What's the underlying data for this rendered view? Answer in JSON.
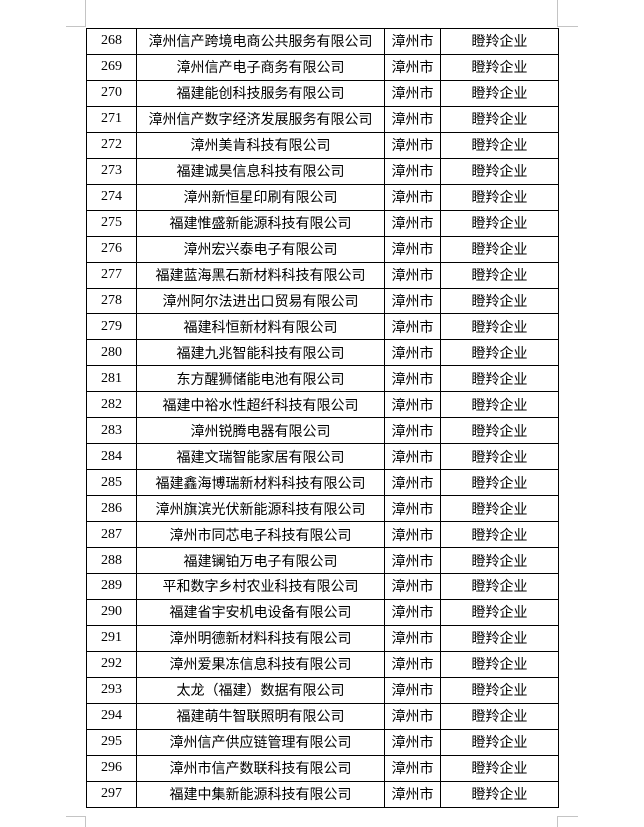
{
  "page": {
    "background_color": "#ffffff",
    "crop_mark_color": "#c4c4c4"
  },
  "table": {
    "border_color": "#000000",
    "text_color": "#000000",
    "rows": [
      {
        "no": "268",
        "company": "漳州信产跨境电商公共服务有限公司",
        "city": "漳州市",
        "category": "瞪羚企业"
      },
      {
        "no": "269",
        "company": "漳州信产电子商务有限公司",
        "city": "漳州市",
        "category": "瞪羚企业"
      },
      {
        "no": "270",
        "company": "福建能创科技服务有限公司",
        "city": "漳州市",
        "category": "瞪羚企业"
      },
      {
        "no": "271",
        "company": "漳州信产数字经济发展服务有限公司",
        "city": "漳州市",
        "category": "瞪羚企业"
      },
      {
        "no": "272",
        "company": "漳州美肯科技有限公司",
        "city": "漳州市",
        "category": "瞪羚企业"
      },
      {
        "no": "273",
        "company": "福建诚昊信息科技有限公司",
        "city": "漳州市",
        "category": "瞪羚企业"
      },
      {
        "no": "274",
        "company": "漳州新恒星印刷有限公司",
        "city": "漳州市",
        "category": "瞪羚企业"
      },
      {
        "no": "275",
        "company": "福建惟盛新能源科技有限公司",
        "city": "漳州市",
        "category": "瞪羚企业"
      },
      {
        "no": "276",
        "company": "漳州宏兴泰电子有限公司",
        "city": "漳州市",
        "category": "瞪羚企业"
      },
      {
        "no": "277",
        "company": "福建蓝海黑石新材料科技有限公司",
        "city": "漳州市",
        "category": "瞪羚企业"
      },
      {
        "no": "278",
        "company": "漳州阿尔法进出口贸易有限公司",
        "city": "漳州市",
        "category": "瞪羚企业"
      },
      {
        "no": "279",
        "company": "福建科恒新材料有限公司",
        "city": "漳州市",
        "category": "瞪羚企业"
      },
      {
        "no": "280",
        "company": "福建九兆智能科技有限公司",
        "city": "漳州市",
        "category": "瞪羚企业"
      },
      {
        "no": "281",
        "company": "东方醒狮储能电池有限公司",
        "city": "漳州市",
        "category": "瞪羚企业"
      },
      {
        "no": "282",
        "company": "福建中裕水性超纤科技有限公司",
        "city": "漳州市",
        "category": "瞪羚企业"
      },
      {
        "no": "283",
        "company": "漳州锐腾电器有限公司",
        "city": "漳州市",
        "category": "瞪羚企业"
      },
      {
        "no": "284",
        "company": "福建文瑞智能家居有限公司",
        "city": "漳州市",
        "category": "瞪羚企业"
      },
      {
        "no": "285",
        "company": "福建鑫海博瑞新材料科技有限公司",
        "city": "漳州市",
        "category": "瞪羚企业"
      },
      {
        "no": "286",
        "company": "漳州旗滨光伏新能源科技有限公司",
        "city": "漳州市",
        "category": "瞪羚企业"
      },
      {
        "no": "287",
        "company": "漳州市同芯电子科技有限公司",
        "city": "漳州市",
        "category": "瞪羚企业"
      },
      {
        "no": "288",
        "company": "福建镧铂万电子有限公司",
        "city": "漳州市",
        "category": "瞪羚企业"
      },
      {
        "no": "289",
        "company": "平和数字乡村农业科技有限公司",
        "city": "漳州市",
        "category": "瞪羚企业"
      },
      {
        "no": "290",
        "company": "福建省宇安机电设备有限公司",
        "city": "漳州市",
        "category": "瞪羚企业"
      },
      {
        "no": "291",
        "company": "漳州明德新材料科技有限公司",
        "city": "漳州市",
        "category": "瞪羚企业"
      },
      {
        "no": "292",
        "company": "漳州爱果冻信息科技有限公司",
        "city": "漳州市",
        "category": "瞪羚企业"
      },
      {
        "no": "293",
        "company": "太龙（福建）数据有限公司",
        "city": "漳州市",
        "category": "瞪羚企业"
      },
      {
        "no": "294",
        "company": "福建萌牛智联照明有限公司",
        "city": "漳州市",
        "category": "瞪羚企业"
      },
      {
        "no": "295",
        "company": "漳州信产供应链管理有限公司",
        "city": "漳州市",
        "category": "瞪羚企业"
      },
      {
        "no": "296",
        "company": "漳州市信产数联科技有限公司",
        "city": "漳州市",
        "category": "瞪羚企业"
      },
      {
        "no": "297",
        "company": "福建中集新能源科技有限公司",
        "city": "漳州市",
        "category": "瞪羚企业"
      }
    ]
  }
}
